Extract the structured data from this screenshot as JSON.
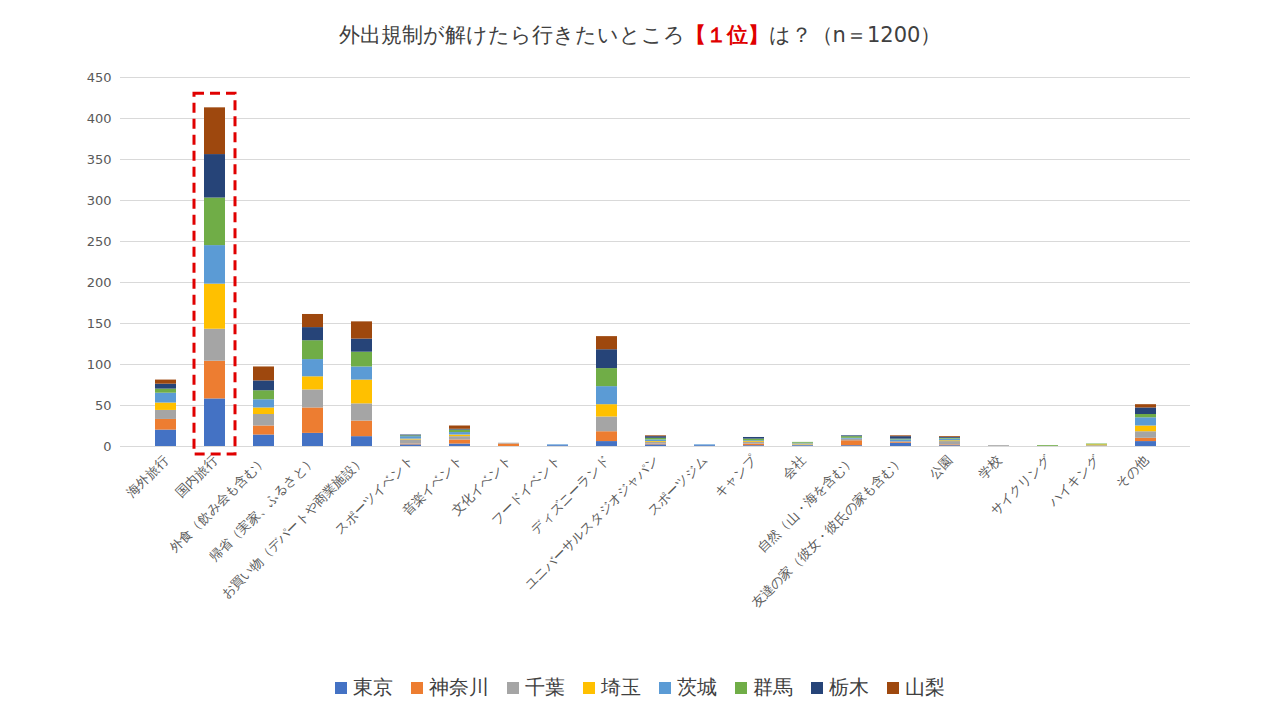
{
  "chart_data": {
    "type": "bar",
    "title": "外出規制が解けたら行きたいところ【１位】は？（n＝1200）",
    "title_emphasis": "【１位】",
    "highlight": "国内旅行",
    "stacked": true,
    "grid": true,
    "legend": "bottom",
    "categories": [
      "海外旅行",
      "国内旅行",
      "外食（飲み会も含む）",
      "帰省（実家、ふるさと）",
      "お買い物（デパートや商業施設）",
      "スポーツイベント",
      "音楽イベント",
      "文化イベント",
      "フードイベント",
      "ディズニーランド",
      "ユニバーサルスタジオジャパン",
      "スポーツジム",
      "キャンプ",
      "会社",
      "自然（山・海を含む）",
      "友達の家（彼女・彼氏の家も含む）",
      "公園",
      "学校",
      "サイクリング",
      "ハイキング",
      "その他"
    ],
    "series": [
      {
        "name": "東京",
        "color": "#4472c4",
        "values": [
          20,
          58,
          14,
          16,
          12,
          2,
          3,
          0,
          1,
          6,
          2,
          1,
          1,
          1,
          1,
          4,
          1,
          0,
          0,
          0,
          6
        ]
      },
      {
        "name": "神奈川",
        "color": "#ed7d31",
        "values": [
          13,
          46,
          11,
          31,
          19,
          1,
          5,
          3,
          0,
          12,
          1,
          0,
          2,
          0,
          6,
          1,
          1,
          0,
          0,
          0,
          4
        ]
      },
      {
        "name": "千葉",
        "color": "#a5a5a5",
        "values": [
          11,
          39,
          14,
          22,
          21,
          5,
          4,
          1,
          0,
          18,
          2,
          0,
          2,
          1,
          2,
          1,
          4,
          1,
          0,
          1,
          8
        ]
      },
      {
        "name": "埼玉",
        "color": "#ffc000",
        "values": [
          9,
          55,
          8,
          16,
          29,
          1,
          2,
          0,
          0,
          15,
          1,
          0,
          1,
          1,
          0,
          0,
          1,
          0,
          0,
          1,
          7
        ]
      },
      {
        "name": "茨城",
        "color": "#5b9bd5",
        "values": [
          12,
          47,
          10,
          21,
          16,
          3,
          3,
          0,
          1,
          22,
          2,
          1,
          1,
          1,
          1,
          2,
          2,
          0,
          0,
          0,
          10
        ]
      },
      {
        "name": "群馬",
        "color": "#70ad47",
        "values": [
          5,
          58,
          11,
          23,
          18,
          1,
          3,
          0,
          0,
          22,
          2,
          0,
          2,
          1,
          2,
          1,
          1,
          0,
          1,
          1,
          4
        ]
      },
      {
        "name": "栃木",
        "color": "#264478",
        "values": [
          6,
          53,
          12,
          16,
          16,
          1,
          1,
          0,
          0,
          23,
          2,
          0,
          2,
          0,
          1,
          3,
          1,
          0,
          0,
          0,
          8
        ]
      },
      {
        "name": "山梨",
        "color": "#9e480e",
        "values": [
          5,
          57,
          17,
          16,
          21,
          0,
          4,
          0,
          0,
          16,
          1,
          0,
          0,
          0,
          0,
          1,
          1,
          0,
          0,
          0,
          4
        ]
      }
    ],
    "ylim": [
      0,
      450
    ],
    "yticks": [
      0,
      50,
      100,
      150,
      200,
      250,
      300,
      350,
      400,
      450
    ]
  }
}
